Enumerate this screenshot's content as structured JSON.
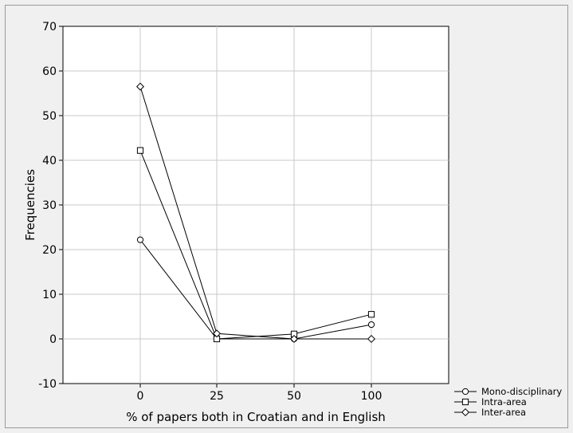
{
  "chart_data": {
    "type": "line",
    "title": "",
    "xlabel": "% of papers both in Croatian and in English",
    "ylabel": "Frequencies",
    "categories": [
      "0",
      "25",
      "50",
      "100"
    ],
    "ylim": [
      -10,
      70
    ],
    "yticks": [
      -10,
      0,
      10,
      20,
      30,
      40,
      50,
      60,
      70
    ],
    "grid": true,
    "legend_position": "bottom-right, outside plot",
    "series": [
      {
        "name": "Mono-disciplinary",
        "marker": "circle",
        "values": [
          22.2,
          0.0,
          0.0,
          3.2
        ]
      },
      {
        "name": "Intra-area",
        "marker": "square",
        "values": [
          42.2,
          0.0,
          1.1,
          5.5
        ]
      },
      {
        "name": "Inter-area",
        "marker": "diamond",
        "values": [
          56.5,
          1.2,
          0.0,
          0.0
        ]
      }
    ]
  },
  "colors": {
    "background": "#f0f0f0",
    "plot_background": "#ffffff",
    "line": "#000000",
    "grid": "#c8c8c8"
  }
}
